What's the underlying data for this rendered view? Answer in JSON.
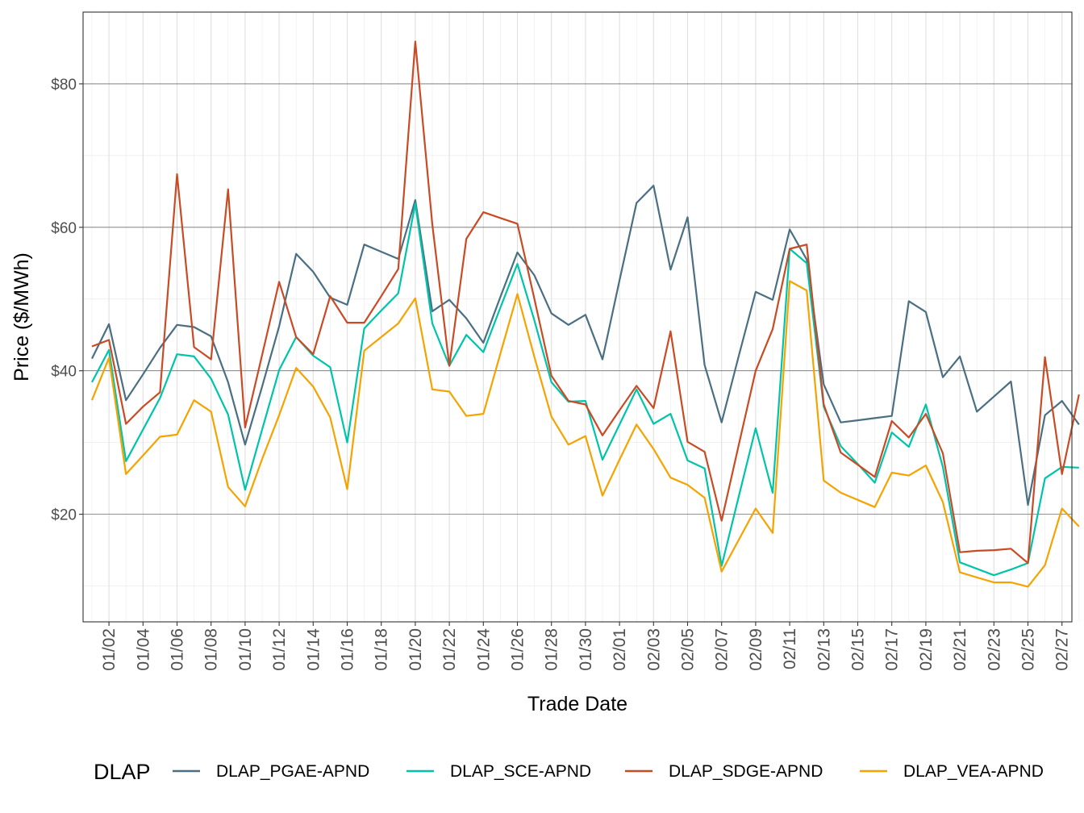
{
  "chart_data": {
    "type": "line",
    "title": "",
    "xlabel": "Trade Date",
    "ylabel": "Price ($/MWh)",
    "ylim": [
      5,
      90
    ],
    "yticks": [
      20,
      40,
      60,
      80
    ],
    "ytick_labels": [
      "$20",
      "$40",
      "$60",
      "$80"
    ],
    "x": [
      "01/01",
      "01/02",
      "01/03",
      "01/04",
      "01/05",
      "01/06",
      "01/07",
      "01/08",
      "01/09",
      "01/10",
      "01/11",
      "01/12",
      "01/13",
      "01/14",
      "01/15",
      "01/16",
      "01/17",
      "01/18",
      "01/19",
      "01/20",
      "01/21",
      "01/22",
      "01/23",
      "01/24",
      "01/25",
      "01/26",
      "01/27",
      "01/28",
      "01/29",
      "01/30",
      "01/31",
      "02/01",
      "02/02",
      "02/03",
      "02/04",
      "02/05",
      "02/06",
      "02/07",
      "02/08",
      "02/09",
      "02/10",
      "02/11",
      "02/12",
      "02/13",
      "02/14",
      "02/15",
      "02/16",
      "02/17",
      "02/18",
      "02/19",
      "02/20",
      "02/21",
      "02/22",
      "02/23",
      "02/24",
      "02/25",
      "02/26",
      "02/27",
      "02/28"
    ],
    "xtick_labels": [
      "01/02",
      "01/04",
      "01/06",
      "01/08",
      "01/10",
      "01/12",
      "01/14",
      "01/16",
      "01/18",
      "01/20",
      "01/22",
      "01/24",
      "01/26",
      "01/28",
      "01/30",
      "02/01",
      "02/03",
      "02/05",
      "02/07",
      "02/09",
      "02/11",
      "02/13",
      "02/15",
      "02/17",
      "02/19",
      "02/21",
      "02/23",
      "02/25",
      "02/27"
    ],
    "grid": true,
    "legend_title": "DLAP",
    "legend_position": "bottom",
    "series": [
      {
        "name": "DLAP_PGAE-APND",
        "color": "#4A6F82",
        "values": [
          41.7,
          46.5,
          35.9,
          39.5,
          43.2,
          46.4,
          46.1,
          44.8,
          38.4,
          29.7,
          37.8,
          46.2,
          56.3,
          53.8,
          50.2,
          49.2,
          57.6,
          56.6,
          55.6,
          63.8,
          48.3,
          49.9,
          47.3,
          43.9,
          50.3,
          56.5,
          53.3,
          48.0,
          46.4,
          47.8,
          41.6,
          52.6,
          63.4,
          65.8,
          54.1,
          61.4,
          40.8,
          32.8,
          42.0,
          51.0,
          49.9,
          59.7,
          55.5,
          38.1,
          32.8,
          33.1,
          33.4,
          33.7,
          49.7,
          48.2,
          39.1,
          42.0,
          34.3,
          36.4,
          38.5,
          21.3,
          33.8,
          35.8,
          32.5
        ]
      },
      {
        "name": "DLAP_SCE-APND",
        "color": "#00C4AA",
        "values": [
          38.4,
          42.9,
          27.4,
          31.8,
          36.2,
          42.3,
          42.0,
          38.9,
          33.9,
          23.4,
          31.8,
          40.1,
          44.7,
          42.1,
          40.5,
          30.0,
          45.9,
          48.4,
          50.8,
          63.3,
          46.6,
          40.7,
          45.0,
          42.6,
          48.8,
          54.9,
          47.0,
          38.4,
          35.7,
          35.8,
          27.6,
          32.5,
          37.4,
          32.6,
          34.0,
          27.5,
          26.4,
          12.8,
          22.4,
          32.0,
          23.0,
          57.0,
          55.0,
          35.0,
          29.5,
          27.0,
          24.4,
          31.4,
          29.4,
          35.3,
          26.6,
          13.3,
          12.4,
          11.5,
          12.3,
          13.2,
          25.0,
          26.6,
          26.5
        ]
      },
      {
        "name": "DLAP_SDGE-APND",
        "color": "#C84B25",
        "values": [
          43.4,
          44.3,
          32.6,
          35.0,
          37.0,
          67.4,
          43.3,
          41.6,
          65.3,
          32.1,
          42.2,
          52.4,
          44.7,
          42.3,
          50.4,
          46.7,
          46.7,
          50.4,
          54.2,
          85.9,
          60.4,
          40.7,
          58.4,
          62.1,
          61.3,
          60.5,
          50.0,
          39.3,
          35.8,
          35.3,
          31.0,
          34.5,
          37.9,
          34.8,
          45.5,
          30.1,
          28.7,
          19.1,
          29.6,
          40.0,
          45.8,
          57.0,
          57.6,
          35.3,
          28.6,
          26.9,
          25.2,
          33.0,
          30.7,
          34.0,
          28.5,
          14.7,
          14.9,
          15.0,
          15.2,
          13.2,
          41.9,
          25.6,
          36.7
        ]
      },
      {
        "name": "DLAP_VEA-APND",
        "color": "#F5A300",
        "values": [
          35.9,
          41.8,
          25.6,
          28.2,
          30.8,
          31.1,
          35.9,
          34.3,
          23.8,
          21.1,
          27.7,
          33.8,
          40.4,
          37.8,
          33.5,
          23.5,
          42.8,
          44.7,
          46.6,
          50.1,
          37.4,
          37.1,
          33.7,
          34.0,
          42.4,
          50.7,
          41.9,
          33.6,
          29.7,
          30.9,
          22.6,
          27.6,
          32.5,
          29.1,
          25.1,
          24.1,
          22.3,
          12.0,
          16.4,
          20.8,
          17.4,
          52.5,
          51.2,
          24.7,
          23.0,
          22.0,
          21.0,
          25.8,
          25.4,
          26.8,
          21.7,
          11.9,
          11.2,
          10.5,
          10.5,
          9.9,
          12.9,
          20.8,
          18.3
        ]
      }
    ]
  }
}
